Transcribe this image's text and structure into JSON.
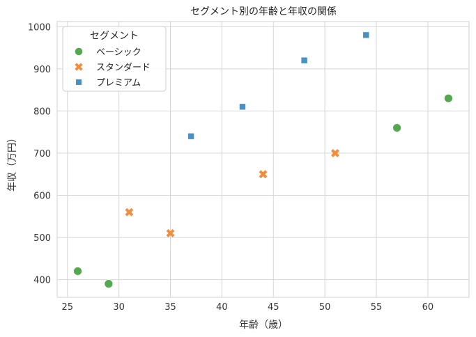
{
  "chart_data": {
    "type": "scatter",
    "title": "セグメント別の年齢と年収の関係",
    "xlabel": "年齢（歳）",
    "ylabel": "年収（万円）",
    "xlim": [
      24,
      64
    ],
    "ylim": [
      358,
      1012
    ],
    "xticks": [
      25,
      30,
      35,
      40,
      45,
      50,
      55,
      60
    ],
    "yticks": [
      400,
      500,
      600,
      700,
      800,
      900,
      1000
    ],
    "grid": true,
    "legend": {
      "title": "セグメント",
      "placement": "top-left"
    },
    "series": [
      {
        "name": "ベーシック",
        "marker": "circle",
        "color": "#55a84f",
        "points": [
          [
            26,
            420
          ],
          [
            29,
            390
          ],
          [
            57,
            760
          ],
          [
            62,
            830
          ]
        ]
      },
      {
        "name": "スタンダード",
        "marker": "x",
        "color": "#f28e3b",
        "points": [
          [
            31,
            560
          ],
          [
            35,
            510
          ],
          [
            44,
            650
          ],
          [
            51,
            700
          ]
        ]
      },
      {
        "name": "プレミアム",
        "marker": "square",
        "color": "#4a90c2",
        "points": [
          [
            37,
            740
          ],
          [
            42,
            810
          ],
          [
            48,
            920
          ],
          [
            54,
            980
          ]
        ]
      }
    ]
  }
}
